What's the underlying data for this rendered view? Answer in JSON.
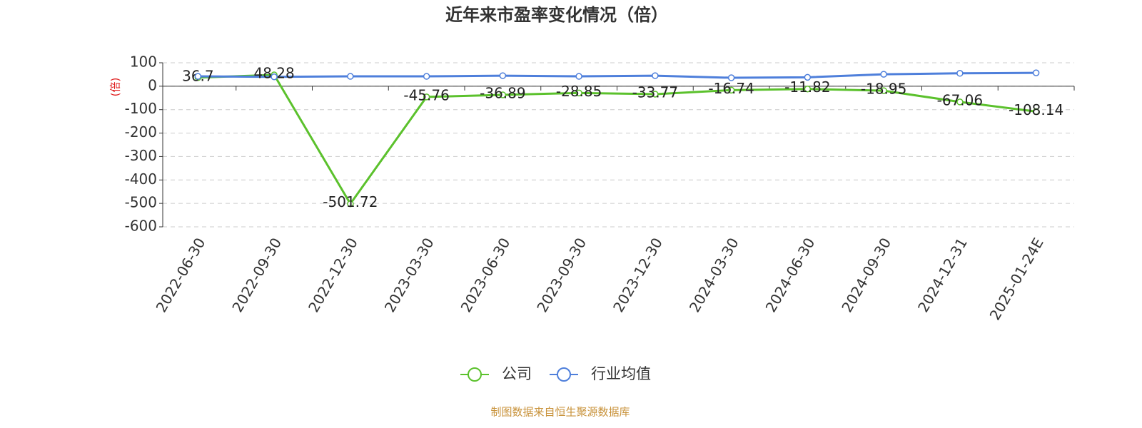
{
  "chart_data": {
    "type": "line",
    "title": "近年来市盈率变化情况（倍）",
    "y_label": "(倍)",
    "categories": [
      "2022-06-30",
      "2022-09-30",
      "2022-12-30",
      "2023-03-30",
      "2023-06-30",
      "2023-09-30",
      "2023-12-30",
      "2024-03-30",
      "2024-06-30",
      "2024-09-30",
      "2024-12-31",
      "2025-01-24E"
    ],
    "series": [
      {
        "name": "公司",
        "color": "#5bc12c",
        "values": [
          36.7,
          48.28,
          -501.72,
          -45.76,
          -36.89,
          -28.85,
          -33.77,
          -16.74,
          -11.82,
          -18.95,
          -67.06,
          -108.14
        ],
        "labels": true
      },
      {
        "name": "行业均值",
        "color": "#4e7fdb",
        "values": [
          42,
          40,
          42,
          42,
          45,
          42,
          45,
          36,
          38,
          51,
          55,
          57
        ],
        "labels": false
      }
    ],
    "ylim": [
      -600,
      100
    ],
    "yticks": [
      100,
      0,
      -100,
      -200,
      -300,
      -400,
      -500,
      -600
    ],
    "grid": true,
    "legend": "bottom",
    "source": "制图数据来自恒生聚源数据库"
  }
}
